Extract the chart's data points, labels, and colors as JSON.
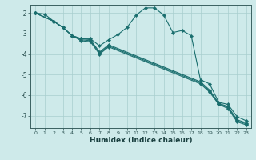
{
  "xlabel": "Humidex (Indice chaleur)",
  "bg_color": "#ceeaea",
  "grid_color": "#a8cece",
  "line_color": "#1a6e6e",
  "xlim": [
    -0.5,
    23.5
  ],
  "ylim": [
    -7.6,
    -1.6
  ],
  "yticks": [
    -7,
    -6,
    -5,
    -4,
    -3,
    -2
  ],
  "xticks": [
    0,
    1,
    2,
    3,
    4,
    5,
    6,
    7,
    8,
    9,
    10,
    11,
    12,
    13,
    14,
    15,
    16,
    17,
    18,
    19,
    20,
    21,
    22,
    23
  ],
  "series": [
    {
      "x": [
        0,
        1,
        2,
        3,
        4,
        5,
        6,
        7,
        8,
        9,
        10,
        11,
        12,
        13,
        14,
        15,
        16,
        17,
        18,
        19,
        20,
        21,
        22,
        23
      ],
      "y": [
        -2.0,
        -2.05,
        -2.4,
        -2.7,
        -3.1,
        -3.25,
        -3.25,
        -3.6,
        -3.3,
        -3.05,
        -2.7,
        -2.1,
        -1.75,
        -1.75,
        -2.1,
        -2.95,
        -2.85,
        -3.1,
        -5.25,
        -5.45,
        -6.35,
        -6.45,
        -7.05,
        -7.25
      ]
    },
    {
      "x": [
        0,
        2,
        3,
        4,
        5,
        6,
        7,
        8,
        18,
        19,
        20,
        21,
        22,
        23
      ],
      "y": [
        -2.0,
        -2.4,
        -2.7,
        -3.1,
        -3.25,
        -3.3,
        -3.9,
        -3.55,
        -5.35,
        -5.75,
        -6.4,
        -6.55,
        -7.2,
        -7.35
      ]
    },
    {
      "x": [
        0,
        2,
        3,
        4,
        5,
        6,
        7,
        8,
        18,
        19,
        20,
        21,
        22,
        23
      ],
      "y": [
        -2.0,
        -2.4,
        -2.7,
        -3.1,
        -3.3,
        -3.35,
        -3.95,
        -3.6,
        -5.4,
        -5.8,
        -6.42,
        -6.6,
        -7.25,
        -7.4
      ]
    },
    {
      "x": [
        0,
        2,
        3,
        4,
        5,
        6,
        7,
        8,
        18,
        19,
        20,
        21,
        22,
        23
      ],
      "y": [
        -2.0,
        -2.4,
        -2.7,
        -3.1,
        -3.35,
        -3.4,
        -4.0,
        -3.65,
        -5.45,
        -5.85,
        -6.45,
        -6.65,
        -7.3,
        -7.45
      ]
    }
  ]
}
